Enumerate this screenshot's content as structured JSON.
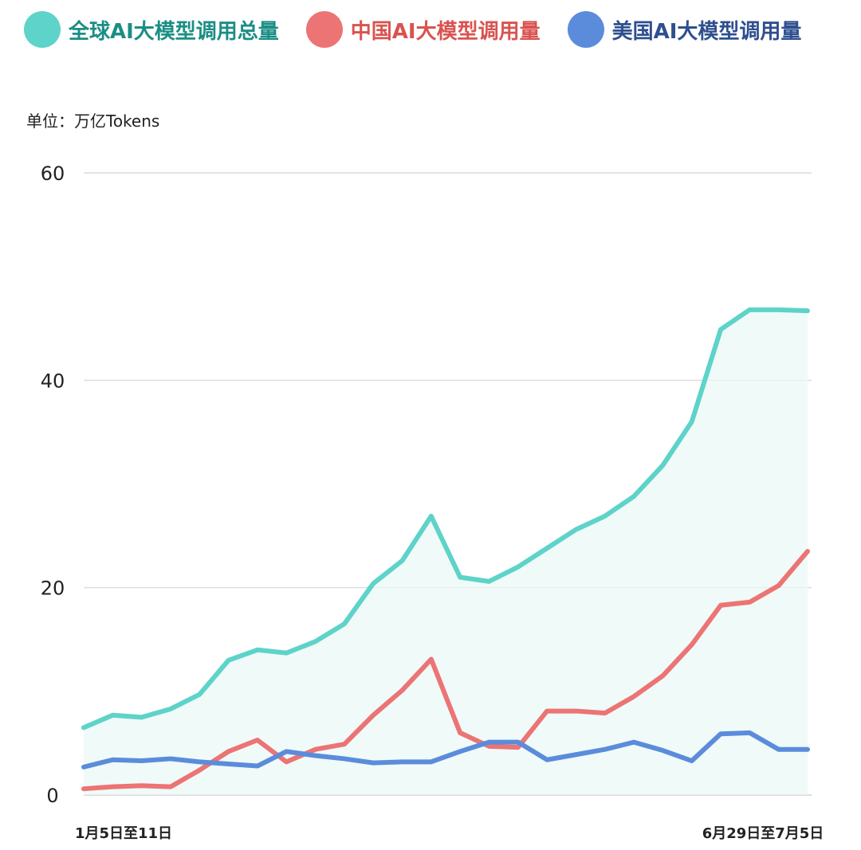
{
  "chart_data": {
    "type": "line",
    "ylabel": "单位：万亿Tokens",
    "ylim": [
      0,
      60
    ],
    "yticks": [
      0,
      20,
      40,
      60
    ],
    "x_tick_labels": [
      "1月5日至11日",
      "6月29日至7月5日"
    ],
    "grid": true,
    "legend_position": "top",
    "series": [
      {
        "name": "全球AI大模型调用总量",
        "color": "#5dd3c9",
        "label_color": "#1b8e84",
        "values": [
          6.5,
          7.7,
          7.5,
          8.3,
          9.7,
          13.0,
          14.0,
          13.7,
          14.8,
          16.5,
          20.4,
          22.6,
          26.9,
          21.0,
          20.6,
          22.0,
          23.8,
          25.6,
          26.9,
          28.8,
          31.8,
          36.0,
          44.9,
          46.8,
          46.8,
          46.7
        ]
      },
      {
        "name": "中国AI大模型调用量",
        "color": "#ec7474",
        "label_color": "#d9534f",
        "values": [
          0.6,
          0.8,
          0.9,
          0.8,
          2.4,
          4.2,
          5.3,
          3.2,
          4.4,
          4.9,
          7.7,
          10.1,
          13.1,
          6.0,
          4.7,
          4.6,
          8.1,
          8.1,
          7.9,
          9.5,
          11.5,
          14.5,
          18.3,
          18.6,
          20.2,
          23.5
        ]
      },
      {
        "name": "美国AI大模型调用量",
        "color": "#5b8cdc",
        "label_color": "#2f4f8f",
        "values": [
          2.7,
          3.4,
          3.3,
          3.5,
          3.2,
          3.0,
          2.8,
          4.2,
          3.8,
          3.5,
          3.1,
          3.2,
          3.2,
          4.2,
          5.1,
          5.1,
          3.4,
          3.9,
          4.4,
          5.1,
          4.3,
          3.3,
          5.9,
          6.0,
          4.4,
          4.4
        ]
      }
    ]
  }
}
